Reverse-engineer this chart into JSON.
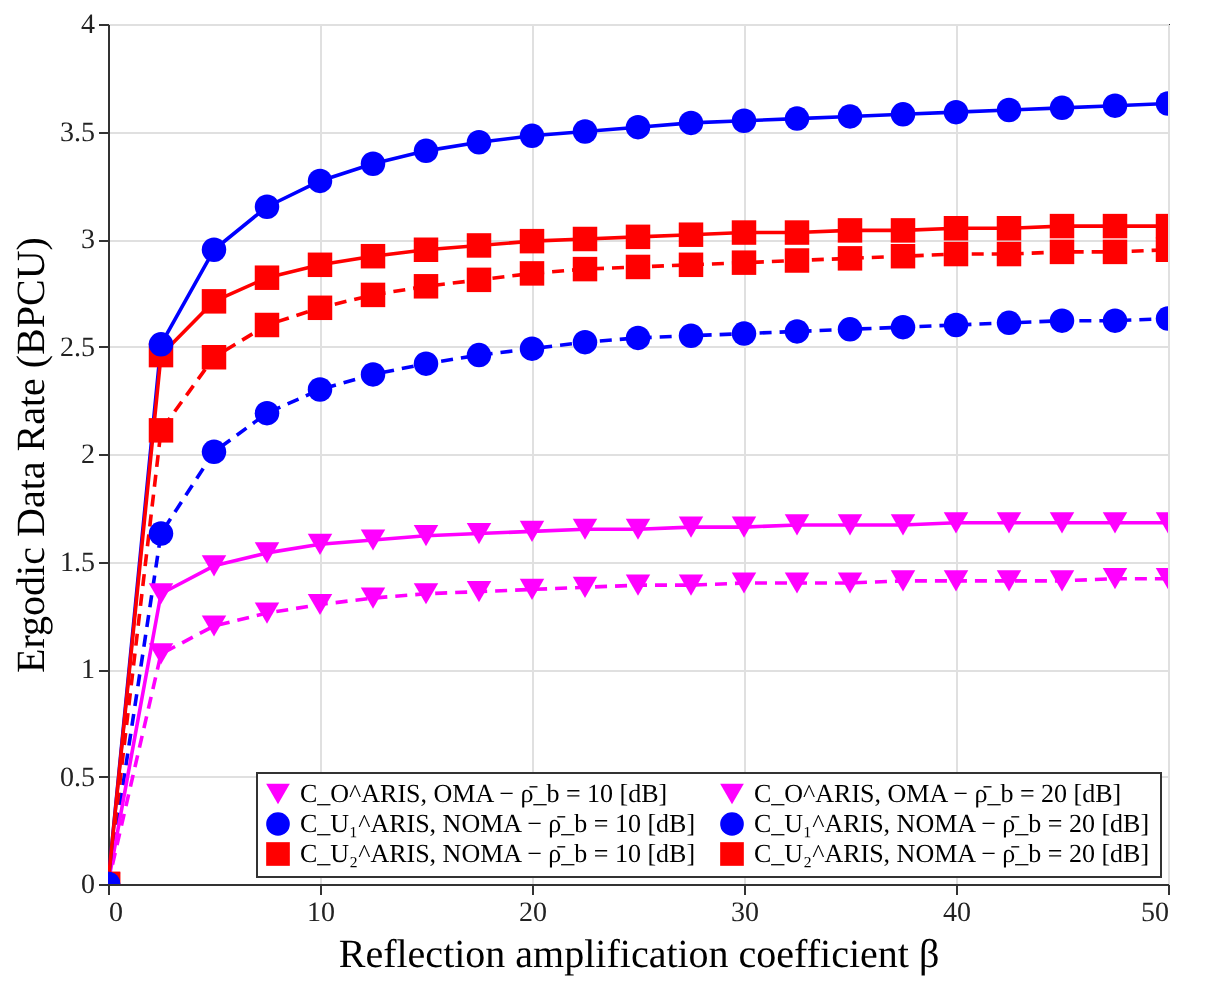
{
  "chart_data": {
    "type": "line",
    "xlabel": "Reflection amplification coefficient β",
    "ylabel": "Ergodic Data Rate (BPCU)",
    "x": [
      0,
      2.5,
      5,
      7.5,
      10,
      12.5,
      15,
      17.5,
      20,
      22.5,
      25,
      27.5,
      30,
      32.5,
      35,
      37.5,
      40,
      42.5,
      45,
      47.5,
      50
    ],
    "xlim": [
      0,
      50
    ],
    "xticks": [
      0,
      10,
      20,
      30,
      40,
      50
    ],
    "ylim": [
      0,
      4
    ],
    "yticks": [
      0,
      0.5,
      1,
      1.5,
      2,
      2.5,
      3,
      3.5,
      4
    ],
    "grid": true,
    "legend": "bottom",
    "series": [
      {
        "name": "C_O^ARIS, OMA − ρ̄_b = 10 [dB]",
        "color": "#ff00ff",
        "marker": "triangle",
        "line_style": "dashed",
        "values": [
          0,
          1.07,
          1.2,
          1.26,
          1.3,
          1.33,
          1.35,
          1.36,
          1.37,
          1.38,
          1.39,
          1.39,
          1.4,
          1.4,
          1.4,
          1.41,
          1.41,
          1.41,
          1.41,
          1.42,
          1.42
        ]
      },
      {
        "name": "C_U₁^ARIS, NOMA − ρ̄_b = 10 [dB]",
        "color": "#0000ff",
        "marker": "circle",
        "line_style": "dashed",
        "values": [
          0,
          1.63,
          2.01,
          2.19,
          2.3,
          2.37,
          2.42,
          2.46,
          2.49,
          2.52,
          2.54,
          2.55,
          2.56,
          2.57,
          2.58,
          2.59,
          2.6,
          2.61,
          2.62,
          2.62,
          2.63
        ]
      },
      {
        "name": "C_U₂^ARIS, NOMA − ρ̄_b = 10 [dB]",
        "color": "#ff0000",
        "marker": "square",
        "line_style": "dashed",
        "values": [
          0,
          2.11,
          2.45,
          2.6,
          2.68,
          2.74,
          2.78,
          2.81,
          2.84,
          2.86,
          2.87,
          2.88,
          2.89,
          2.9,
          2.91,
          2.92,
          2.93,
          2.93,
          2.94,
          2.94,
          2.95
        ]
      },
      {
        "name": "C_O^ARIS, OMA − ρ̄_b = 20 [dB]",
        "color": "#ff00ff",
        "marker": "triangle",
        "line_style": "solid",
        "values": [
          0,
          1.35,
          1.48,
          1.54,
          1.58,
          1.6,
          1.62,
          1.63,
          1.64,
          1.65,
          1.65,
          1.66,
          1.66,
          1.67,
          1.67,
          1.67,
          1.68,
          1.68,
          1.68,
          1.68,
          1.68
        ]
      },
      {
        "name": "C_U₁^ARIS, NOMA − ρ̄_b = 20 [dB]",
        "color": "#0000ff",
        "marker": "circle",
        "line_style": "solid",
        "values": [
          0,
          2.51,
          2.95,
          3.15,
          3.27,
          3.35,
          3.41,
          3.45,
          3.48,
          3.5,
          3.52,
          3.54,
          3.55,
          3.56,
          3.57,
          3.58,
          3.59,
          3.6,
          3.61,
          3.62,
          3.63
        ]
      },
      {
        "name": "C_U₂^ARIS, NOMA − ρ̄_b = 20 [dB]",
        "color": "#ff0000",
        "marker": "square",
        "line_style": "solid",
        "values": [
          0,
          2.46,
          2.71,
          2.82,
          2.88,
          2.92,
          2.95,
          2.97,
          2.99,
          3.0,
          3.01,
          3.02,
          3.03,
          3.03,
          3.04,
          3.04,
          3.05,
          3.05,
          3.06,
          3.06,
          3.06
        ]
      }
    ]
  }
}
